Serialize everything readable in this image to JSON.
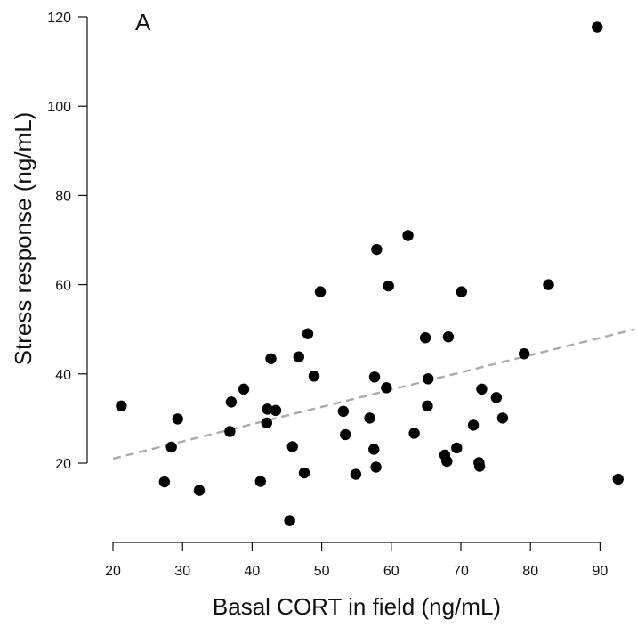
{
  "chart_data": {
    "type": "scatter",
    "panel_label": "A",
    "xlabel": "Basal CORT in field (ng/mL)",
    "ylabel": "Stress response (ng/mL)",
    "xlim": [
      20,
      95
    ],
    "ylim": [
      0,
      120
    ],
    "xticks": [
      20,
      30,
      40,
      50,
      60,
      70,
      80,
      90
    ],
    "yticks": [
      20,
      40,
      60,
      80,
      100,
      120
    ],
    "grid": false,
    "point_color": "#000000",
    "trend_color": "#aaaaaa",
    "trendline": {
      "x": [
        20,
        95
      ],
      "y": [
        21,
        50
      ],
      "style": "dashed"
    },
    "points": [
      {
        "x": 21.2,
        "y": 32.8
      },
      {
        "x": 27.4,
        "y": 15.8
      },
      {
        "x": 28.4,
        "y": 23.6
      },
      {
        "x": 29.3,
        "y": 29.9
      },
      {
        "x": 32.4,
        "y": 13.9
      },
      {
        "x": 36.8,
        "y": 27.1
      },
      {
        "x": 37.0,
        "y": 33.7
      },
      {
        "x": 38.8,
        "y": 36.6
      },
      {
        "x": 41.2,
        "y": 15.9
      },
      {
        "x": 42.1,
        "y": 29.0
      },
      {
        "x": 42.2,
        "y": 32.1
      },
      {
        "x": 42.7,
        "y": 43.4
      },
      {
        "x": 43.4,
        "y": 31.8
      },
      {
        "x": 45.4,
        "y": 7.1
      },
      {
        "x": 45.8,
        "y": 23.7
      },
      {
        "x": 46.7,
        "y": 43.8
      },
      {
        "x": 47.5,
        "y": 17.8
      },
      {
        "x": 48.0,
        "y": 49.0
      },
      {
        "x": 48.9,
        "y": 39.5
      },
      {
        "x": 49.8,
        "y": 58.4
      },
      {
        "x": 53.1,
        "y": 31.6
      },
      {
        "x": 53.4,
        "y": 26.4
      },
      {
        "x": 54.9,
        "y": 17.5
      },
      {
        "x": 56.9,
        "y": 30.1
      },
      {
        "x": 57.5,
        "y": 23.1
      },
      {
        "x": 57.6,
        "y": 39.3
      },
      {
        "x": 57.8,
        "y": 19.1
      },
      {
        "x": 57.9,
        "y": 67.9
      },
      {
        "x": 59.3,
        "y": 36.9
      },
      {
        "x": 59.6,
        "y": 59.7
      },
      {
        "x": 62.4,
        "y": 71.0
      },
      {
        "x": 63.3,
        "y": 26.7
      },
      {
        "x": 64.9,
        "y": 48.1
      },
      {
        "x": 65.2,
        "y": 32.8
      },
      {
        "x": 65.3,
        "y": 38.9
      },
      {
        "x": 67.7,
        "y": 21.8
      },
      {
        "x": 68.0,
        "y": 20.4
      },
      {
        "x": 68.2,
        "y": 48.3
      },
      {
        "x": 69.4,
        "y": 23.4
      },
      {
        "x": 70.1,
        "y": 58.4
      },
      {
        "x": 71.8,
        "y": 28.5
      },
      {
        "x": 72.6,
        "y": 20.1
      },
      {
        "x": 72.7,
        "y": 19.3
      },
      {
        "x": 73.0,
        "y": 36.6
      },
      {
        "x": 75.1,
        "y": 34.7
      },
      {
        "x": 76.0,
        "y": 30.1
      },
      {
        "x": 79.1,
        "y": 44.5
      },
      {
        "x": 82.6,
        "y": 60.0
      },
      {
        "x": 89.6,
        "y": 117.7
      },
      {
        "x": 92.6,
        "y": 16.4
      }
    ]
  }
}
